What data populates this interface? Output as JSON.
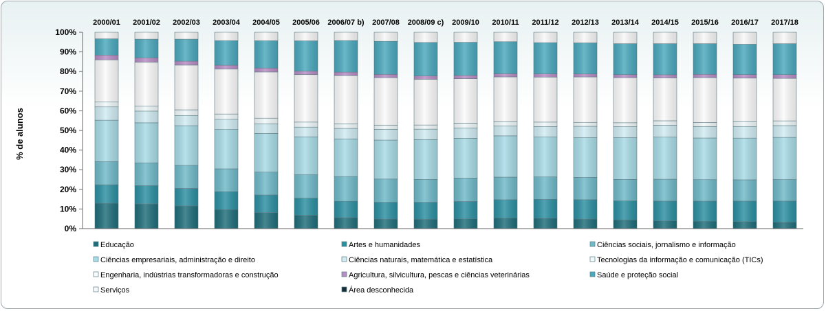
{
  "chart_data": {
    "type": "bar",
    "stacked": true,
    "percent": true,
    "ylabel": "% de alunos",
    "ylim": [
      0,
      100
    ],
    "yticks": [
      "0%",
      "10%",
      "20%",
      "30%",
      "40%",
      "50%",
      "60%",
      "70%",
      "80%",
      "90%",
      "100%"
    ],
    "legend_position": "bottom",
    "grid": false,
    "categories": [
      "2000/01",
      "2001/02",
      "2002/03",
      "2003/04",
      "2004/05",
      "2005/06",
      "2006/07 b)",
      "2007/08",
      "2008/09 c)",
      "2009/10",
      "2010/11",
      "2011/12",
      "2012/13",
      "2013/14",
      "2014/15",
      "2015/16",
      "2016/17",
      "2017/18"
    ],
    "series": [
      {
        "name": "Educação",
        "color": "#1e6d7a",
        "values": [
          12.8,
          12.5,
          11.5,
          9.6,
          8.2,
          6.9,
          5.6,
          4.9,
          4.8,
          5.0,
          5.4,
          5.3,
          4.9,
          4.5,
          4.0,
          3.8,
          3.6,
          3.3
        ]
      },
      {
        "name": "Artes e humanidades",
        "color": "#2b8fa1",
        "values": [
          9.3,
          9.2,
          8.8,
          9.0,
          9.0,
          8.8,
          8.3,
          8.5,
          8.6,
          8.8,
          9.3,
          9.6,
          9.8,
          9.6,
          10.0,
          10.2,
          10.4,
          10.7
        ]
      },
      {
        "name": "Ciências sociais, jornalismo e informação",
        "color": "#6fb9c8",
        "values": [
          11.6,
          11.5,
          11.7,
          11.5,
          11.7,
          12.0,
          12.6,
          11.8,
          11.6,
          11.9,
          11.5,
          11.4,
          11.3,
          10.9,
          11.1,
          10.9,
          10.8,
          10.9
        ]
      },
      {
        "name": "Ciências empresariais, administração e direito",
        "color": "#a8dbe6",
        "values": [
          20.9,
          20.2,
          20.0,
          19.8,
          19.7,
          19.5,
          19.1,
          19.8,
          20.3,
          20.2,
          21.0,
          20.3,
          20.2,
          21.2,
          21.4,
          21.2,
          21.2,
          21.4
        ]
      },
      {
        "name": "Ciências naturais, matemática e estatística",
        "color": "#d0ecf2",
        "values": [
          6.7,
          5.9,
          5.1,
          5.2,
          4.9,
          5.0,
          5.4,
          5.5,
          5.3,
          5.3,
          5.0,
          5.3,
          5.8,
          5.6,
          6.0,
          5.8,
          5.9,
          6.0
        ]
      },
      {
        "name": "Tecnologias da informação e comunicação (TICs)",
        "color": "#f1f9fb",
        "values": [
          2.6,
          2.5,
          2.9,
          2.6,
          2.9,
          2.6,
          2.3,
          2.1,
          2.1,
          2.4,
          2.3,
          2.3,
          2.0,
          2.0,
          2.3,
          2.1,
          2.7,
          2.4
        ]
      },
      {
        "name": "Engenharia, indústrias transformadoras e construção",
        "color": "#fbfbfb",
        "values": [
          21.1,
          22.2,
          22.6,
          22.7,
          23.6,
          24.4,
          24.6,
          24.1,
          23.3,
          22.6,
          22.7,
          22.9,
          23.1,
          22.9,
          21.8,
          22.8,
          21.9,
          21.6
        ]
      },
      {
        "name": "Agricultura, silvicultura, pescas e ciências veterinárias",
        "color": "#b88cc4",
        "values": [
          2.4,
          2.2,
          2.0,
          1.9,
          2.0,
          1.8,
          1.7,
          1.7,
          1.7,
          1.7,
          1.6,
          1.6,
          1.5,
          1.6,
          1.6,
          1.7,
          1.8,
          1.9
        ]
      },
      {
        "name": "Saúde e proteção social",
        "color": "#4aa8bd",
        "values": [
          8.2,
          9.4,
          11.1,
          12.4,
          14.0,
          15.6,
          16.1,
          16.8,
          17.0,
          16.8,
          16.3,
          15.9,
          15.8,
          15.7,
          15.8,
          15.6,
          15.4,
          15.7
        ]
      },
      {
        "name": "Serviços",
        "color": "#f8f8f8",
        "values": [
          3.3,
          3.5,
          3.5,
          4.2,
          4.3,
          4.4,
          4.2,
          4.6,
          5.2,
          5.1,
          4.8,
          5.3,
          5.4,
          5.8,
          5.8,
          5.8,
          6.1,
          5.8
        ]
      },
      {
        "name": "Área desconhecida",
        "color": "#15303a",
        "values": [
          0,
          0,
          0,
          0,
          0,
          0,
          0,
          0,
          0,
          0,
          0,
          0,
          0,
          0,
          0,
          0,
          0,
          0
        ]
      }
    ]
  }
}
